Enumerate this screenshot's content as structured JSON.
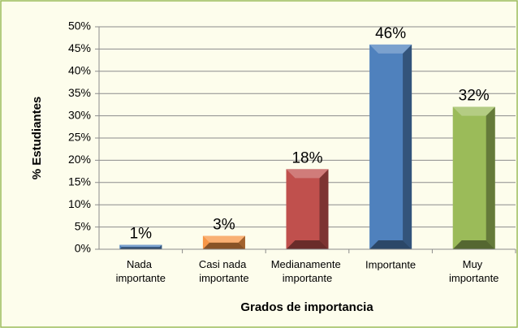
{
  "chart_data": {
    "type": "bar",
    "categories": [
      "Nada importante",
      "Casi nada importante",
      "Medianamente importante",
      "Importante",
      "Muy importante"
    ],
    "values": [
      1,
      3,
      18,
      46,
      32
    ],
    "value_labels": [
      "1%",
      "3%",
      "18%",
      "46%",
      "32%"
    ],
    "colors": [
      "#4f81bd",
      "#f79646",
      "#c0504d",
      "#4f81bd",
      "#9bbb59"
    ],
    "xlabel": "Grados de importancia",
    "ylabel": "% Estudiantes",
    "ylim": [
      0,
      50
    ],
    "yticks": [
      {
        "value": 0,
        "label": "0%"
      },
      {
        "value": 5,
        "label": "5%"
      },
      {
        "value": 10,
        "label": "10%"
      },
      {
        "value": 15,
        "label": "15%"
      },
      {
        "value": 20,
        "label": "20%"
      },
      {
        "value": 25,
        "label": "25%"
      },
      {
        "value": 30,
        "label": "30%"
      },
      {
        "value": 35,
        "label": "35%"
      },
      {
        "value": 40,
        "label": "40%"
      },
      {
        "value": 45,
        "label": "45%"
      },
      {
        "value": 50,
        "label": "50%"
      }
    ],
    "grid": true
  }
}
